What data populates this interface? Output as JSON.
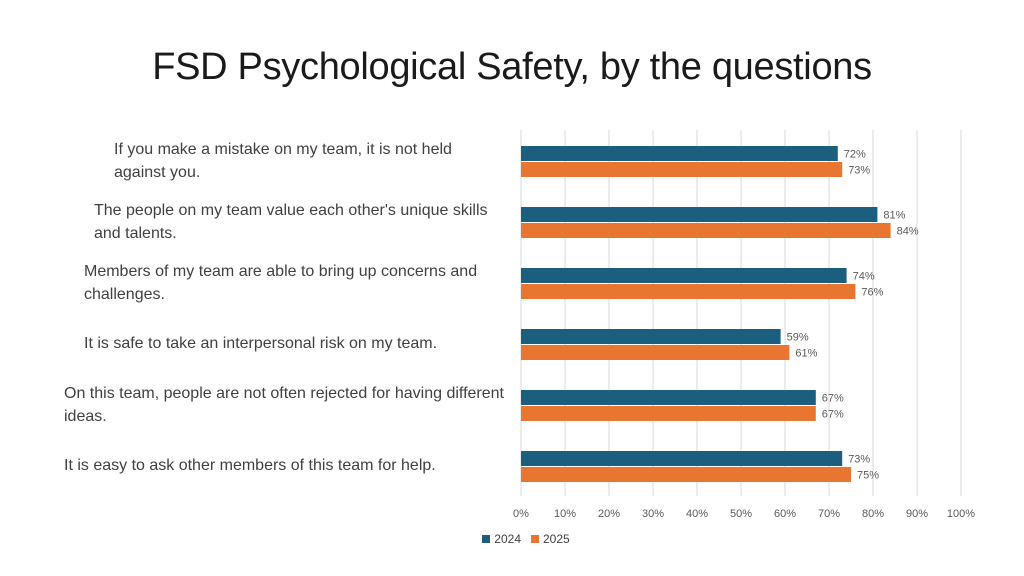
{
  "title": "FSD Psychological Safety, by the questions",
  "chart_data": {
    "type": "bar",
    "orientation": "horizontal",
    "categories": [
      "If you make a mistake on my team, it is not held against you.",
      "The people on my team value each other's unique skills and talents.",
      "Members of my team are able to bring up concerns and challenges.",
      "It is safe to take an interpersonal risk on my team.",
      "On this team, people are not often rejected for having different ideas.",
      "It is easy to ask other members of this team for help."
    ],
    "series": [
      {
        "name": "2024",
        "color": "#1b5e7e",
        "values": [
          72,
          81,
          74,
          59,
          67,
          73
        ]
      },
      {
        "name": "2025",
        "color": "#e87530",
        "values": [
          73,
          84,
          76,
          61,
          67,
          75
        ]
      }
    ],
    "xlim": [
      0,
      100
    ],
    "xticks": [
      "0%",
      "10%",
      "20%",
      "30%",
      "40%",
      "50%",
      "60%",
      "70%",
      "80%",
      "90%",
      "100%"
    ],
    "value_suffix": "%",
    "grid": "vertical",
    "legend": "bottom"
  }
}
